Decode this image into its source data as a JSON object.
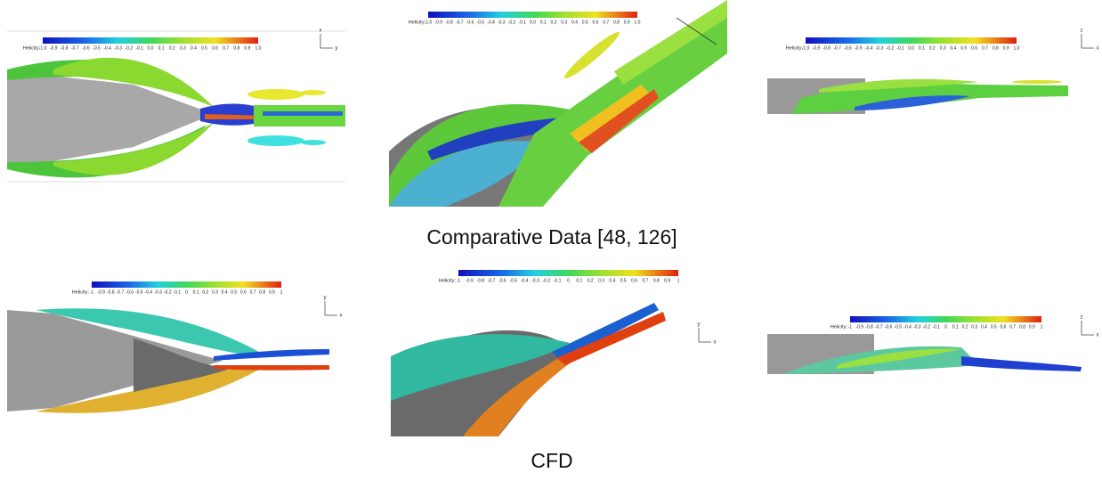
{
  "captions": {
    "top": "Comparative Data [48, 126]",
    "bottom": "CFD"
  },
  "panels": [
    {
      "colorbar": {
        "label": "Helicity:",
        "ticks": [
          "-1.0",
          "-0.9",
          "-0.8",
          "-0.7",
          "-0.6",
          "-0.5",
          "-0.4",
          "-0.3",
          "-0.2",
          "-0.1",
          "0.0",
          "0.1",
          "0.2",
          "0.3",
          "0.4",
          "0.5",
          "0.6",
          "0.7",
          "0.8",
          "0.9",
          "1.0"
        ]
      },
      "triad": [
        "x",
        "y"
      ]
    },
    {
      "colorbar": {
        "label": "Helicity:",
        "ticks": [
          "-1.0",
          "-0.9",
          "-0.8",
          "-0.7",
          "-0.6",
          "-0.5",
          "-0.4",
          "-0.3",
          "-0.2",
          "-0.1",
          "0.0",
          "0.1",
          "0.2",
          "0.3",
          "0.4",
          "0.5",
          "0.6",
          "0.7",
          "0.8",
          "0.9",
          "1.0"
        ]
      },
      "triad": []
    },
    {
      "colorbar": {
        "label": "Helicity:",
        "ticks": [
          "-1.0",
          "-0.9",
          "-0.8",
          "-0.7",
          "-0.6",
          "-0.5",
          "-0.4",
          "-0.3",
          "-0.2",
          "-0.1",
          "0.0",
          "0.1",
          "0.2",
          "0.3",
          "0.4",
          "0.5",
          "0.6",
          "0.7",
          "0.8",
          "0.9",
          "1.0"
        ]
      },
      "triad": [
        "z",
        "x"
      ]
    },
    {
      "colorbar": {
        "label": "Helicity:",
        "ticks": [
          "-1",
          "-0.9",
          "-0.8",
          "-0.7",
          "-0.6",
          "-0.5",
          "-0.4",
          "-0.3",
          "-0.2",
          "-0.1",
          "0",
          "0.1",
          "0.2",
          "0.3",
          "0.4",
          "0.5",
          "0.6",
          "0.7",
          "0.8",
          "0.9",
          "1"
        ]
      },
      "triad": [
        "y",
        "x"
      ]
    },
    {
      "colorbar": {
        "label": "Helicity:",
        "ticks": [
          "-1",
          "-0.9",
          "-0.8",
          "-0.7",
          "-0.6",
          "-0.5",
          "-0.4",
          "-0.3",
          "-0.2",
          "-0.1",
          "0",
          "0.1",
          "0.2",
          "0.3",
          "0.4",
          "0.5",
          "0.6",
          "0.7",
          "0.8",
          "0.9",
          "1"
        ]
      },
      "triad": [
        "y",
        "x"
      ]
    },
    {
      "colorbar": {
        "label": "Helicity:",
        "ticks": [
          "-1",
          "-0.9",
          "-0.8",
          "-0.7",
          "-0.6",
          "-0.5",
          "-0.4",
          "-0.3",
          "-0.2",
          "-0.1",
          "0",
          "0.1",
          "0.2",
          "0.3",
          "0.4",
          "0.5",
          "0.6",
          "0.7",
          "0.8",
          "0.9",
          "1"
        ]
      },
      "triad": [
        "z",
        "x"
      ]
    }
  ]
}
